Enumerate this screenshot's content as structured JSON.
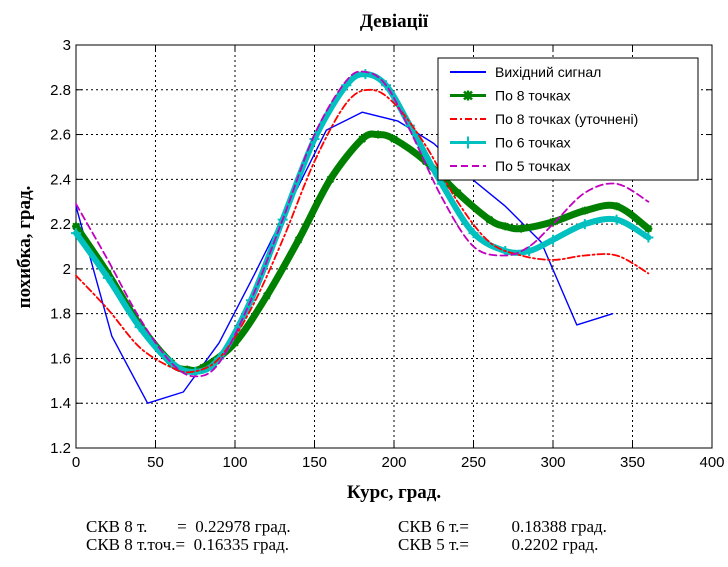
{
  "chart_data": {
    "type": "line",
    "title": "Девіації",
    "xlabel": "Курс, град.",
    "ylabel": "похибка, град.",
    "xlim": [
      0,
      400
    ],
    "ylim": [
      1.2,
      3.0
    ],
    "xticks": [
      "0",
      "50",
      "100",
      "150",
      "200",
      "250",
      "300",
      "350",
      "400"
    ],
    "yticks": [
      "1.2",
      "1.4",
      "1.6",
      "1.8",
      "2",
      "2.2",
      "2.4",
      "2.6",
      "2.8",
      "3"
    ],
    "grid": true,
    "legend_position": "top-right",
    "series": [
      {
        "name": "Вихідний сигнал",
        "color": "#0000ff",
        "style": "solid",
        "marker": "none",
        "x": [
          0,
          22.5,
          45,
          67.5,
          90,
          112.5,
          135,
          157.5,
          180,
          202.5,
          225,
          247.5,
          270,
          292.5,
          315,
          337.5
        ],
        "y": [
          2.28,
          1.7,
          1.4,
          1.45,
          1.67,
          1.98,
          2.3,
          2.62,
          2.7,
          2.66,
          2.56,
          2.41,
          2.28,
          2.12,
          1.75,
          1.8
        ]
      },
      {
        "name": "По 8 точках",
        "color": "#008000",
        "style": "solid",
        "marker": "star",
        "x": [
          0,
          20,
          40,
          60,
          70,
          80,
          100,
          120,
          140,
          160,
          180,
          190,
          200,
          220,
          240,
          260,
          270,
          280,
          300,
          320,
          340,
          360
        ],
        "y": [
          2.19,
          1.98,
          1.75,
          1.58,
          1.55,
          1.56,
          1.67,
          1.88,
          2.13,
          2.4,
          2.58,
          2.6,
          2.58,
          2.48,
          2.34,
          2.22,
          2.19,
          2.18,
          2.21,
          2.26,
          2.28,
          2.18
        ]
      },
      {
        "name": "По 8 точках (уточнені)",
        "color": "#ff0000",
        "style": "dashdot",
        "marker": "none",
        "x": [
          0,
          20,
          40,
          60,
          73,
          90,
          110,
          130,
          150,
          170,
          185,
          200,
          220,
          240,
          260,
          280,
          300,
          320,
          340,
          360
        ],
        "y": [
          1.97,
          1.82,
          1.65,
          1.56,
          1.54,
          1.6,
          1.82,
          2.13,
          2.48,
          2.74,
          2.8,
          2.74,
          2.55,
          2.3,
          2.12,
          2.06,
          2.04,
          2.06,
          2.06,
          1.98
        ]
      },
      {
        "name": "По 6 точках",
        "color": "#00c0c0",
        "style": "solid",
        "marker": "plus",
        "x": [
          0,
          20,
          40,
          60,
          75,
          90,
          110,
          130,
          150,
          170,
          182,
          195,
          210,
          230,
          250,
          270,
          285,
          300,
          320,
          340,
          360
        ],
        "y": [
          2.16,
          1.96,
          1.74,
          1.58,
          1.54,
          1.6,
          1.86,
          2.22,
          2.58,
          2.82,
          2.87,
          2.82,
          2.64,
          2.38,
          2.16,
          2.08,
          2.08,
          2.13,
          2.2,
          2.22,
          2.14
        ]
      },
      {
        "name": "По 5 точках",
        "color": "#c000c0",
        "style": "dashed",
        "marker": "none",
        "x": [
          0,
          20,
          40,
          60,
          75,
          90,
          110,
          130,
          150,
          170,
          182,
          195,
          210,
          230,
          250,
          270,
          285,
          300,
          320,
          340,
          360
        ],
        "y": [
          2.29,
          2.04,
          1.78,
          1.58,
          1.52,
          1.58,
          1.86,
          2.22,
          2.6,
          2.84,
          2.88,
          2.82,
          2.62,
          2.32,
          2.1,
          2.06,
          2.1,
          2.2,
          2.34,
          2.38,
          2.3
        ]
      }
    ]
  },
  "stats": {
    "row1_left": "СКВ 8 т.       =  0.22978 град.",
    "row1_right": "СКВ 6 т.=          0.18388 град.",
    "row2_left": "СКВ 8 т.точ.=  0.16335 град.",
    "row2_right": "СКВ 5 т.=          0.2202 град."
  }
}
